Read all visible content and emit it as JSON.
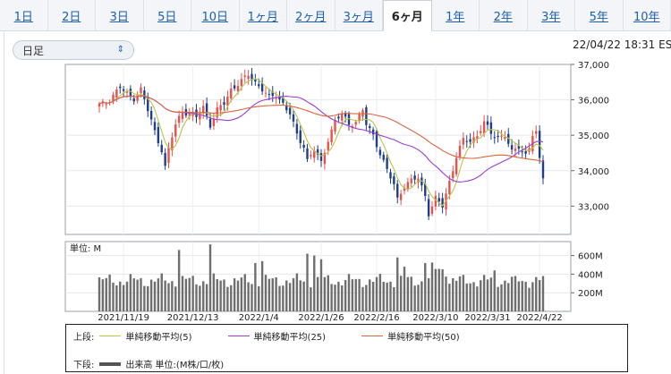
{
  "tabs": [
    {
      "label": "1日",
      "active": false
    },
    {
      "label": "2日",
      "active": false
    },
    {
      "label": "3日",
      "active": false
    },
    {
      "label": "5日",
      "active": false
    },
    {
      "label": "10日",
      "active": false
    },
    {
      "label": "1ヶ月",
      "active": false
    },
    {
      "label": "2ヶ月",
      "active": false
    },
    {
      "label": "3ヶ月",
      "active": false
    },
    {
      "label": "6ヶ月",
      "active": true
    },
    {
      "label": "1年",
      "active": false
    },
    {
      "label": "2年",
      "active": false
    },
    {
      "label": "3年",
      "active": false
    },
    {
      "label": "5年",
      "active": false
    },
    {
      "label": "10年",
      "active": false
    }
  ],
  "period_select": {
    "value": "日足"
  },
  "timestamp": "22/04/22 18:31 ES",
  "legend": {
    "upper_label": "上段:",
    "lower_label": "下段:",
    "ma5": "単純移動平均(5)",
    "ma25": "単純移動平均(25)",
    "ma50": "単純移動平均(50)",
    "volume": "出来高 単位:(M株/口/枚)"
  },
  "chart_data": {
    "type": "candlestick",
    "price_axis": {
      "min": 32200,
      "max": 37000,
      "ticks": [
        33000,
        34000,
        35000,
        36000,
        37000
      ],
      "tick_labels": [
        "33,000",
        "34,000",
        "35,000",
        "36,000",
        "37,000"
      ]
    },
    "volume_axis": {
      "unit_label": "単位: M",
      "min": 0,
      "max": 750,
      "ticks": [
        200,
        400,
        600
      ],
      "tick_labels": [
        "200M",
        "400M",
        "600M"
      ]
    },
    "x_labels": [
      {
        "index": 7,
        "label": "2021/11/19"
      },
      {
        "index": 27,
        "label": "2021/12/13"
      },
      {
        "index": 46,
        "label": "2022/1/4"
      },
      {
        "index": 64,
        "label": "2022/1/26"
      },
      {
        "index": 80,
        "label": "2022/2/16"
      },
      {
        "index": 97,
        "label": "2022/3/10"
      },
      {
        "index": 112,
        "label": "2022/3/31"
      },
      {
        "index": 127,
        "label": "2022/4/22"
      }
    ],
    "colors": {
      "up": "#e8514a",
      "down": "#1d3f8a",
      "ma5": "#b9c44a",
      "ma25": "#9c3fcf",
      "ma50": "#d9663e",
      "volume": "#6e6e6e"
    },
    "close_path": [
      [
        0,
        35850
      ],
      [
        2,
        35900
      ],
      [
        4,
        36150
      ],
      [
        6,
        36350
      ],
      [
        8,
        36150
      ],
      [
        10,
        36050
      ],
      [
        12,
        36300
      ],
      [
        14,
        35700
      ],
      [
        16,
        35100
      ],
      [
        18,
        34600
      ],
      [
        19,
        34100
      ],
      [
        20,
        34600
      ],
      [
        22,
        35300
      ],
      [
        24,
        35700
      ],
      [
        26,
        35600
      ],
      [
        28,
        35500
      ],
      [
        30,
        35800
      ],
      [
        32,
        35300
      ],
      [
        34,
        35700
      ],
      [
        36,
        35900
      ],
      [
        38,
        36300
      ],
      [
        40,
        36450
      ],
      [
        42,
        36600
      ],
      [
        43,
        36700
      ],
      [
        45,
        36500
      ],
      [
        47,
        36300
      ],
      [
        49,
        36050
      ],
      [
        51,
        36150
      ],
      [
        53,
        35900
      ],
      [
        55,
        35600
      ],
      [
        57,
        35000
      ],
      [
        59,
        34700
      ],
      [
        60,
        34300
      ],
      [
        62,
        34600
      ],
      [
        64,
        34200
      ],
      [
        66,
        34900
      ],
      [
        68,
        35400
      ],
      [
        70,
        35600
      ],
      [
        72,
        35300
      ],
      [
        74,
        35400
      ],
      [
        76,
        35700
      ],
      [
        77,
        35300
      ],
      [
        79,
        35000
      ],
      [
        81,
        34500
      ],
      [
        83,
        34000
      ],
      [
        85,
        33600
      ],
      [
        86,
        33200
      ],
      [
        88,
        33600
      ],
      [
        90,
        33700
      ],
      [
        92,
        33800
      ],
      [
        94,
        33300
      ],
      [
        95,
        32800
      ],
      [
        97,
        33200
      ],
      [
        99,
        33000
      ],
      [
        101,
        33700
      ],
      [
        103,
        34400
      ],
      [
        105,
        34850
      ],
      [
        107,
        34850
      ],
      [
        109,
        35000
      ],
      [
        111,
        35350
      ],
      [
        113,
        35050
      ],
      [
        115,
        34950
      ],
      [
        117,
        35000
      ],
      [
        119,
        34500
      ],
      [
        121,
        34700
      ],
      [
        123,
        34450
      ],
      [
        124,
        34650
      ],
      [
        125,
        35000
      ],
      [
        126,
        35050
      ],
      [
        127,
        34300
      ],
      [
        128,
        33850
      ]
    ]
  }
}
